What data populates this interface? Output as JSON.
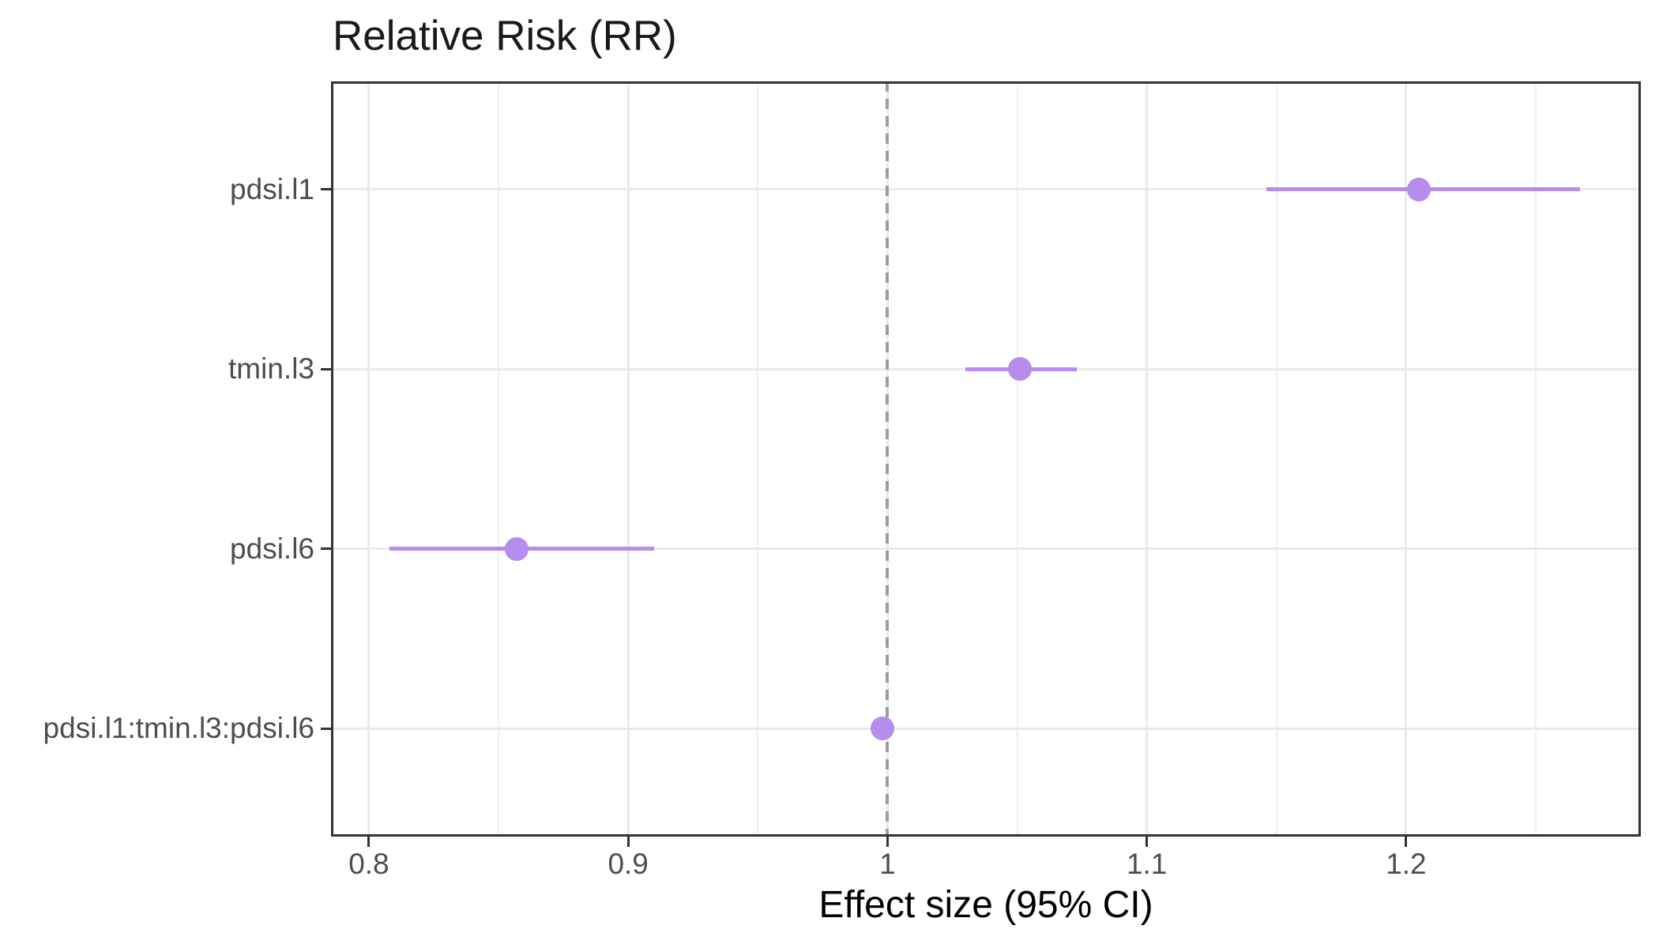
{
  "chart_data": {
    "type": "scatter",
    "subtype": "forest-plot",
    "title": "Relative Risk (RR)",
    "xlabel": "Effect size (95% CI)",
    "ylabel": "",
    "categories": [
      "pdsi.l1",
      "tmin.l3",
      "pdsi.l6",
      "pdsi.l1:tmin.l3:pdsi.l6"
    ],
    "points": [
      {
        "label": "pdsi.l1",
        "estimate": 1.205,
        "ci_low": 1.146,
        "ci_high": 1.267
      },
      {
        "label": "tmin.l3",
        "estimate": 1.051,
        "ci_low": 1.03,
        "ci_high": 1.073
      },
      {
        "label": "pdsi.l6",
        "estimate": 0.857,
        "ci_low": 0.808,
        "ci_high": 0.91
      },
      {
        "label": "pdsi.l1:tmin.l3:pdsi.l6",
        "estimate": 0.998,
        "ci_low": 0.995,
        "ci_high": 1.001
      }
    ],
    "reference_line": 1.0,
    "x_axis": {
      "min": 0.7854,
      "max": 1.2905,
      "major_ticks": [
        0.8,
        0.9,
        1.0,
        1.1,
        1.2
      ],
      "tick_labels": [
        "0.8",
        "0.9",
        "1",
        "1.1",
        "1.2"
      ],
      "minor_ticks": [
        0.85,
        0.95,
        1.05,
        1.15,
        1.25
      ]
    },
    "grid": true,
    "legend": false
  },
  "style": {
    "point_color": "#b68cec",
    "ci_color": "#b68cec",
    "reference_line_color": "#9c9c9c"
  }
}
